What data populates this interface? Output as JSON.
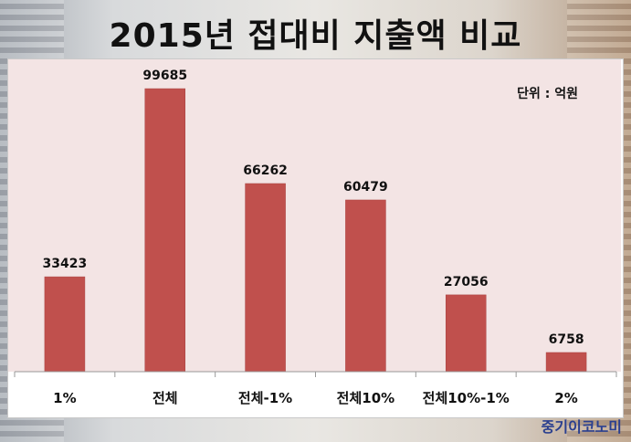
{
  "title": "2015년 접대비 지출액 비교",
  "unit": "단위 : 억원",
  "brand": "중기이코노미",
  "colors": {
    "bar": "#c0504d",
    "plot_bg": "#f3e4e4",
    "axis": "#999999"
  },
  "chart_data": {
    "type": "bar",
    "title": "2015년 접대비 지출액 비교",
    "categories": [
      "1%",
      "전체",
      "전체-1%",
      "전체10%",
      "전체10%-1%",
      "2%"
    ],
    "values": [
      33423,
      99685,
      66262,
      60479,
      27056,
      6758
    ],
    "xlabel": "",
    "ylabel": "",
    "ylim": [
      0,
      110000
    ],
    "grid": false,
    "legend": "none"
  }
}
